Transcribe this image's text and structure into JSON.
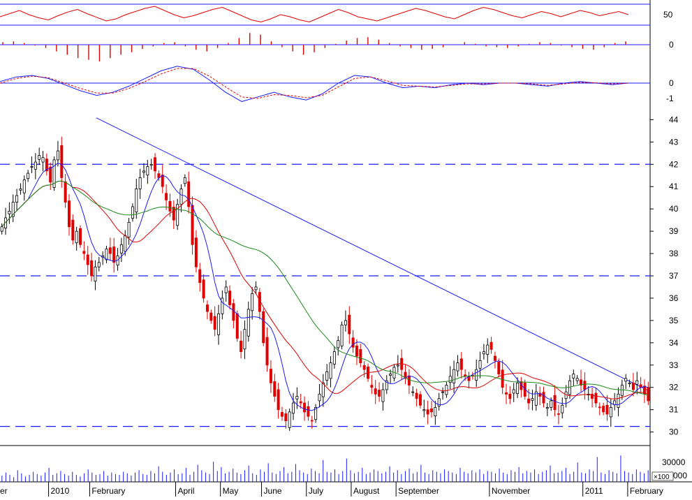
{
  "colors": {
    "background": "#ffffff",
    "axis_line": "#000000",
    "grid_line": "#1a1aff",
    "trend_line": "#1a1aff",
    "candle_down": "#e00000",
    "candle_up": "#000000",
    "ma_short": "#1a1aff",
    "ma_mid": "#e00000",
    "ma_long": "#1a8a1a",
    "indicator_red": "#e00000",
    "indicator_blue": "#1a1aff",
    "volume": "#1a1aff"
  },
  "chart_data": [
    {
      "type": "line",
      "panel": "oscillator",
      "y_tick_labels": [
        "50"
      ],
      "reference_levels": [
        70,
        30
      ],
      "series": [
        {
          "color": "#e00000",
          "values": [
            46,
            52,
            58,
            50,
            44,
            40,
            48,
            55,
            60,
            52,
            45,
            38,
            42,
            50,
            56,
            62,
            66,
            58,
            50,
            44,
            48,
            54,
            60,
            64,
            56,
            48,
            40,
            36,
            42,
            50,
            46,
            40,
            36,
            44,
            52,
            60,
            54,
            46,
            42,
            38,
            44,
            50,
            56,
            62,
            58,
            52,
            46,
            42,
            50,
            58,
            64,
            60,
            54,
            48,
            44,
            50,
            56,
            52,
            46,
            52,
            58,
            54,
            48,
            52,
            56,
            50
          ]
        }
      ]
    },
    {
      "type": "bar",
      "panel": "histogram",
      "y_tick_labels": [
        "0"
      ],
      "values": [
        0.3,
        0.4,
        0.2,
        -0.1,
        -0.4,
        -0.8,
        -1.2,
        -1.6,
        -1.8,
        -2.0,
        -1.6,
        -1.2,
        -0.9,
        -0.5,
        -0.2,
        0.2,
        0.3,
        -0.2,
        -0.6,
        -0.8,
        -0.4,
        0.2,
        0.8,
        1.4,
        1.2,
        0.4,
        -0.3,
        -0.8,
        -1.2,
        -0.9,
        -0.4,
        0.1,
        0.5,
        0.8,
        0.9,
        0.6,
        0.2,
        -0.2,
        -0.4,
        -0.6,
        -0.5,
        -0.3,
        0.0,
        0.3,
        0.1,
        -0.2,
        -0.3,
        -0.4,
        -0.2,
        0.1,
        0.3,
        0.2,
        -0.1,
        -0.3,
        -0.5,
        -0.6,
        -0.3,
        0.2,
        0.4
      ]
    },
    {
      "type": "line",
      "panel": "macd",
      "y_tick_labels": [
        "0",
        "-1"
      ],
      "series": [
        {
          "color": "#1a1aff",
          "values": [
            0.1,
            0.4,
            0.5,
            0.3,
            -0.1,
            -0.5,
            -0.8,
            -0.6,
            -0.2,
            0.3,
            0.8,
            1.1,
            0.9,
            0.2,
            -0.6,
            -1.2,
            -0.9,
            -0.6,
            -0.9,
            -1.1,
            -0.7,
            0.0,
            0.5,
            0.4,
            0.0,
            -0.3,
            -0.2,
            -0.3,
            -0.1,
            0.0,
            -0.1,
            0.0,
            0.0,
            -0.1,
            -0.2,
            0.0,
            0.1,
            0.0,
            -0.1,
            0.0
          ]
        },
        {
          "color": "#e00000",
          "values": [
            0.0,
            0.3,
            0.45,
            0.35,
            0.0,
            -0.35,
            -0.65,
            -0.65,
            -0.35,
            0.1,
            0.6,
            0.95,
            0.95,
            0.45,
            -0.25,
            -0.9,
            -1.0,
            -0.75,
            -0.8,
            -0.95,
            -0.8,
            -0.25,
            0.3,
            0.4,
            0.15,
            -0.15,
            -0.2,
            -0.25,
            -0.15,
            -0.05,
            -0.05,
            0.0,
            0.0,
            -0.05,
            -0.15,
            -0.05,
            0.05,
            0.02,
            -0.05,
            0.0
          ]
        }
      ]
    },
    {
      "type": "candlestick",
      "panel": "price",
      "y_tick_labels": [
        "44",
        "43",
        "42",
        "41",
        "40",
        "39",
        "38",
        "37",
        "36",
        "35",
        "34",
        "33",
        "32",
        "31",
        "30"
      ],
      "ylim": [
        29.55,
        44.2
      ],
      "x_tick_labels": [
        "2010",
        "February",
        "April",
        "May",
        "June",
        "July",
        "August",
        "September",
        "November",
        "2011",
        "February"
      ],
      "x_tick_index": [
        13,
        24,
        47,
        59,
        70,
        82,
        94,
        106,
        131,
        156,
        168
      ],
      "close": [
        39.2,
        39.6,
        39.9,
        40.3,
        40.6,
        40.9,
        41.3,
        41.6,
        41.9,
        42.1,
        42.4,
        42.3,
        41.7,
        41.2,
        42.2,
        42.6,
        41.4,
        40.3,
        39.2,
        38.6,
        39.0,
        38.4,
        38.0,
        37.5,
        37.0,
        37.4,
        37.6,
        37.9,
        38.2,
        38.0,
        37.6,
        37.9,
        38.4,
        38.8,
        39.4,
        40.1,
        40.9,
        41.4,
        41.7,
        41.9,
        42.0,
        41.7,
        41.4,
        41.0,
        40.4,
        39.9,
        39.5,
        40.2,
        40.9,
        41.4,
        40.1,
        38.4,
        37.4,
        36.7,
        36.0,
        35.4,
        35.0,
        34.6,
        35.3,
        36.0,
        36.5,
        35.7,
        35.0,
        34.2,
        33.6,
        34.6,
        35.5,
        36.2,
        36.5,
        35.4,
        34.0,
        33.0,
        32.2,
        31.6,
        31.0,
        30.7,
        30.5,
        30.9,
        31.3,
        31.6,
        31.3,
        30.9,
        30.7,
        30.5,
        31.1,
        31.7,
        32.2,
        32.7,
        33.1,
        33.6,
        34.1,
        34.8,
        35.0,
        34.4,
        33.8,
        33.4,
        33.1,
        32.8,
        32.4,
        32.0,
        31.7,
        31.6,
        31.9,
        32.3,
        32.6,
        32.9,
        33.0,
        32.8,
        32.4,
        32.1,
        31.8,
        31.5,
        31.2,
        31.0,
        30.8,
        30.9,
        31.1,
        31.5,
        31.8,
        32.1,
        32.5,
        32.8,
        33.1,
        32.8,
        32.5,
        32.3,
        32.5,
        32.8,
        33.2,
        33.6,
        33.9,
        33.7,
        33.2,
        32.6,
        32.0,
        31.7,
        31.5,
        31.9,
        32.2,
        31.9,
        31.6,
        31.3,
        31.5,
        31.8,
        31.6,
        31.3,
        31.1,
        31.4,
        31.0,
        30.8,
        31.2,
        31.8,
        32.3,
        32.6,
        32.4,
        32.1,
        31.9,
        31.7,
        31.5,
        31.3,
        31.1,
        30.9,
        30.8,
        31.1,
        31.4,
        31.7,
        32.1,
        32.4,
        32.2,
        31.9,
        32.3,
        32.0,
        31.7,
        31.4
      ]
    },
    {
      "type": "bar",
      "panel": "volume",
      "y_tick_labels": [
        "30000",
        "000"
      ],
      "unit_label": "×100",
      "ylim": [
        0,
        45000
      ],
      "values": [
        8000,
        12000,
        9000,
        6000,
        15000,
        11000,
        7000,
        9000,
        13000,
        10000,
        8000,
        12000,
        18000,
        9000,
        11000,
        14000,
        10000,
        8000,
        13000,
        9000,
        7000,
        11000,
        16000,
        12000,
        9000,
        10000,
        14000,
        8000,
        12000,
        10000,
        9000,
        13000,
        11000,
        8000,
        12000,
        15000,
        10000,
        9000,
        14000,
        11000,
        20000,
        13000,
        9000,
        12000,
        16000,
        10000,
        11000,
        18000,
        9000,
        13000,
        22000,
        15000,
        12000,
        10000,
        26000,
        14000,
        19000,
        11000,
        13000,
        17000,
        12000,
        10000,
        15000,
        21000,
        11000,
        9000,
        16000,
        13000,
        24000,
        12000,
        10000,
        14000,
        19000,
        11000,
        13000,
        23000,
        15000,
        12000,
        10000,
        17000,
        14000,
        11000,
        28000,
        13000,
        12000,
        16000,
        10000,
        14000,
        30000,
        15000,
        11000,
        13000,
        18000,
        10000,
        12000,
        16000,
        14000,
        11000,
        13000,
        20000,
        12000,
        15000,
        10000,
        14000,
        17000,
        11000,
        13000,
        22000,
        12000,
        10000,
        15000,
        13000,
        11000,
        16000,
        14000,
        12000,
        10000,
        18000,
        13000,
        11000,
        15000,
        12000,
        16000,
        10000,
        14000,
        13000,
        11000,
        17000,
        12000,
        10000,
        15000,
        13000,
        19000,
        11000,
        14000,
        12000,
        16000,
        10000,
        13000,
        15000,
        21000,
        11000,
        12000,
        14000,
        18000,
        10000,
        13000,
        25000,
        12000,
        11000,
        16000,
        14000,
        32000,
        12000,
        10000,
        15000,
        13000,
        11000,
        34000,
        14000,
        12000,
        10000,
        16000,
        13000,
        11000,
        15000
      ]
    }
  ]
}
